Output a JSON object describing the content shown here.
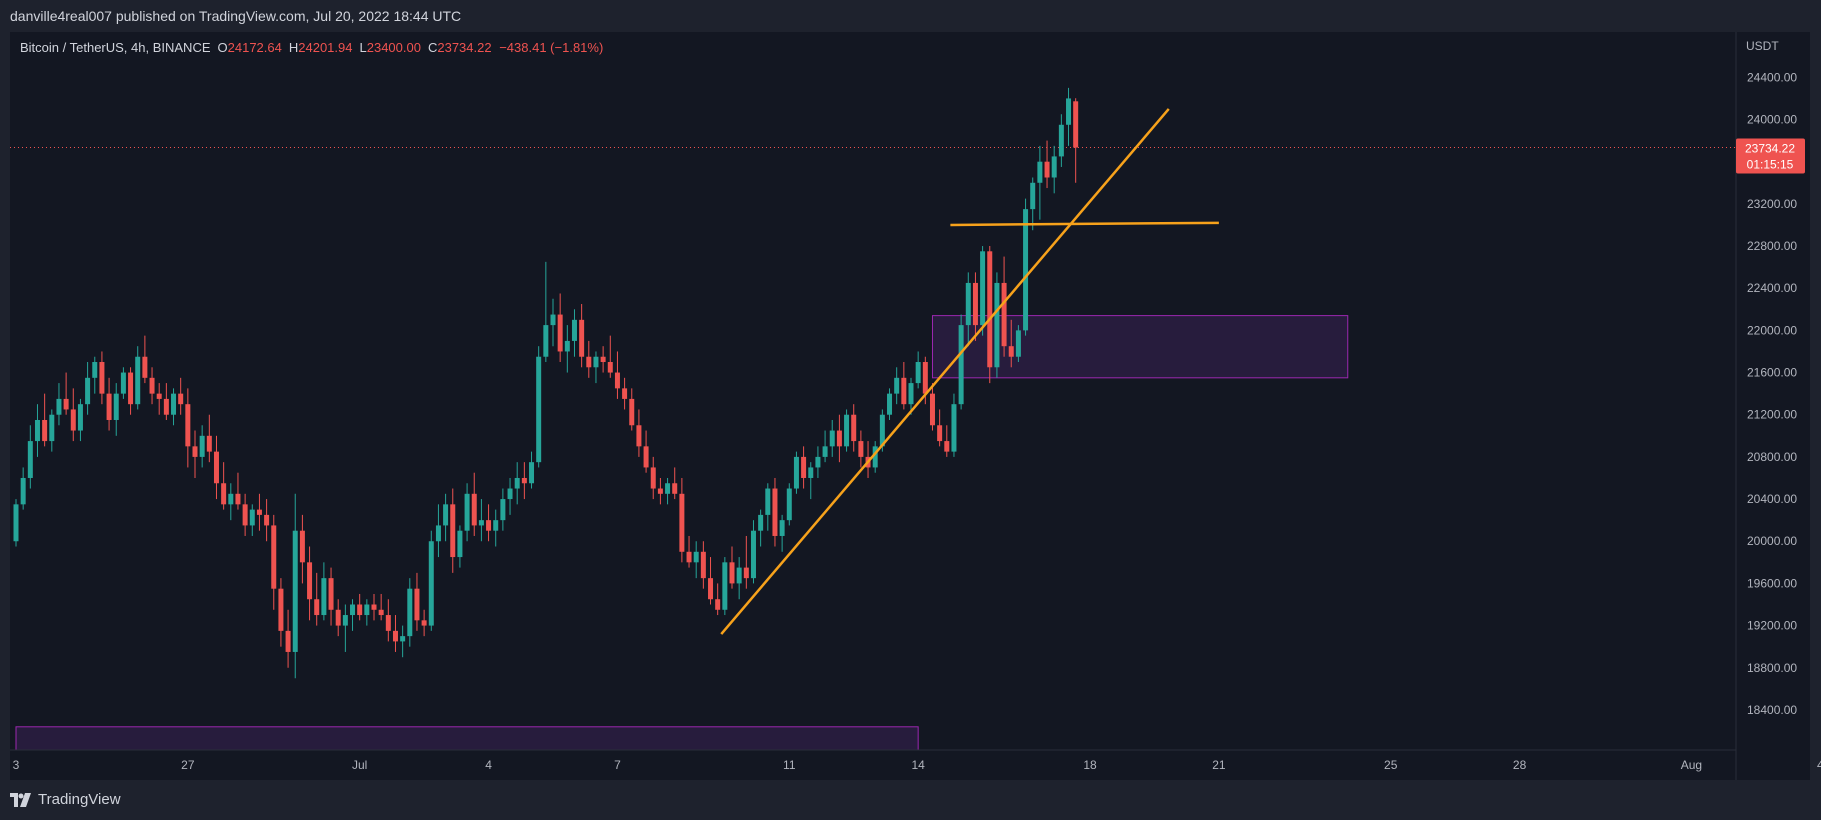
{
  "header": {
    "published_text": "danville4real007 published on TradingView.com, Jul 20, 2022 18:44 UTC"
  },
  "legend": {
    "symbol": "Bitcoin / TetherUS, 4h, BINANCE",
    "o_label": "O",
    "o_value": "24172.64",
    "h_label": "H",
    "h_value": "24201.94",
    "l_label": "L",
    "l_value": "23400.00",
    "c_label": "C",
    "c_value": "23734.22",
    "change": "−438.41 (−1.81%)"
  },
  "footer": {
    "brand": "TradingView"
  },
  "colors": {
    "background": "#131722",
    "grid": "#1e222d",
    "up": "#26a69a",
    "down": "#ef5350",
    "trendline": "#f7a21b",
    "zone_fill": "#2a1d40",
    "zone_border": "#9c27b0",
    "text": "#b2b5be"
  },
  "chart_data": {
    "type": "candlestick",
    "symbol": "Bitcoin / TetherUS",
    "interval": "4h",
    "exchange": "BINANCE",
    "price_axis_label": "USDT",
    "ylim": [
      18020,
      24830
    ],
    "xlim": [
      "Jun 22 18:00",
      "Aug 8 00:00"
    ],
    "y_ticks": [
      "24400.00",
      "24000.00",
      "23200.00",
      "22800.00",
      "22400.00",
      "22000.00",
      "21600.00",
      "21200.00",
      "20800.00",
      "20400.00",
      "20000.00",
      "19600.00",
      "19200.00",
      "18800.00",
      "18400.00"
    ],
    "x_ticks": [
      {
        "label": "3",
        "t": 0
      },
      {
        "label": "27",
        "t": 4
      },
      {
        "label": "Jul",
        "t": 8
      },
      {
        "label": "4",
        "t": 11
      },
      {
        "label": "7",
        "t": 14
      },
      {
        "label": "11",
        "t": 18
      },
      {
        "label": "14",
        "t": 21
      },
      {
        "label": "18",
        "t": 25
      },
      {
        "label": "21",
        "t": 28
      },
      {
        "label": "25",
        "t": 32
      },
      {
        "label": "28",
        "t": 35
      },
      {
        "label": "Aug",
        "t": 39
      },
      {
        "label": "4",
        "t": 42
      }
    ],
    "last_price": {
      "value": "23734.22",
      "countdown": "01:15:15",
      "price": 23734.22
    },
    "candles": [
      [
        20000,
        20400,
        19950,
        20350
      ],
      [
        20350,
        20700,
        20300,
        20600
      ],
      [
        20600,
        21100,
        20500,
        20950
      ],
      [
        20950,
        21300,
        20800,
        21150
      ],
      [
        21150,
        21400,
        20900,
        20950
      ],
      [
        20950,
        21250,
        20850,
        21200
      ],
      [
        21200,
        21500,
        21100,
        21350
      ],
      [
        21350,
        21600,
        21200,
        21250
      ],
      [
        21250,
        21450,
        20950,
        21050
      ],
      [
        21050,
        21350,
        20950,
        21300
      ],
      [
        21300,
        21700,
        21200,
        21550
      ],
      [
        21550,
        21750,
        21400,
        21700
      ],
      [
        21700,
        21800,
        21300,
        21400
      ],
      [
        21400,
        21550,
        21050,
        21150
      ],
      [
        21150,
        21500,
        21000,
        21400
      ],
      [
        21400,
        21650,
        21350,
        21600
      ],
      [
        21600,
        21650,
        21200,
        21300
      ],
      [
        21300,
        21850,
        21250,
        21750
      ],
      [
        21750,
        21950,
        21500,
        21550
      ],
      [
        21550,
        21650,
        21300,
        21400
      ],
      [
        21400,
        21500,
        21200,
        21350
      ],
      [
        21350,
        21500,
        21150,
        21200
      ],
      [
        21200,
        21450,
        21100,
        21400
      ],
      [
        21400,
        21550,
        21200,
        21300
      ],
      [
        21300,
        21450,
        20700,
        20900
      ],
      [
        20900,
        21050,
        20600,
        20800
      ],
      [
        20800,
        21100,
        20700,
        21000
      ],
      [
        21000,
        21200,
        20750,
        20850
      ],
      [
        20850,
        21000,
        20400,
        20550
      ],
      [
        20550,
        20750,
        20300,
        20350
      ],
      [
        20350,
        20550,
        20200,
        20450
      ],
      [
        20450,
        20650,
        20300,
        20350
      ],
      [
        20350,
        20450,
        20050,
        20150
      ],
      [
        20150,
        20350,
        20050,
        20300
      ],
      [
        20300,
        20450,
        20100,
        20250
      ],
      [
        20250,
        20400,
        20000,
        20150
      ],
      [
        20150,
        20250,
        19350,
        19550
      ],
      [
        19550,
        19650,
        19000,
        19150
      ],
      [
        19150,
        19350,
        18800,
        18950
      ],
      [
        18950,
        20450,
        18700,
        20100
      ],
      [
        20100,
        20250,
        19600,
        19800
      ],
      [
        19800,
        19950,
        19250,
        19450
      ],
      [
        19450,
        19700,
        19200,
        19300
      ],
      [
        19300,
        19800,
        19250,
        19650
      ],
      [
        19650,
        19750,
        19200,
        19350
      ],
      [
        19350,
        19450,
        19100,
        19200
      ],
      [
        19200,
        19400,
        18950,
        19300
      ],
      [
        19300,
        19450,
        19150,
        19400
      ],
      [
        19400,
        19500,
        19250,
        19300
      ],
      [
        19300,
        19450,
        19200,
        19400
      ],
      [
        19400,
        19500,
        19250,
        19350
      ],
      [
        19350,
        19500,
        19250,
        19300
      ],
      [
        19300,
        19450,
        19050,
        19150
      ],
      [
        19150,
        19300,
        18950,
        19050
      ],
      [
        19050,
        19200,
        18900,
        19100
      ],
      [
        19100,
        19650,
        19000,
        19550
      ],
      [
        19550,
        19700,
        19150,
        19250
      ],
      [
        19250,
        19350,
        19100,
        19200
      ],
      [
        19200,
        20100,
        19150,
        20000
      ],
      [
        20000,
        20350,
        19850,
        20150
      ],
      [
        20150,
        20450,
        20000,
        20350
      ],
      [
        20350,
        20500,
        19700,
        19850
      ],
      [
        19850,
        20150,
        19750,
        20100
      ],
      [
        20100,
        20550,
        20000,
        20450
      ],
      [
        20450,
        20650,
        20050,
        20150
      ],
      [
        20150,
        20400,
        20000,
        20200
      ],
      [
        20200,
        20350,
        20000,
        20100
      ],
      [
        20100,
        20300,
        19950,
        20200
      ],
      [
        20200,
        20500,
        20100,
        20400
      ],
      [
        20400,
        20600,
        20250,
        20500
      ],
      [
        20500,
        20750,
        20350,
        20600
      ],
      [
        20600,
        20750,
        20400,
        20550
      ],
      [
        20550,
        20850,
        20500,
        20750
      ],
      [
        20750,
        21850,
        20700,
        21750
      ],
      [
        21750,
        22650,
        21700,
        22050
      ],
      [
        22050,
        22300,
        21850,
        22150
      ],
      [
        22150,
        22350,
        21700,
        21800
      ],
      [
        21800,
        22050,
        21600,
        21900
      ],
      [
        21900,
        22200,
        21750,
        22100
      ],
      [
        22100,
        22250,
        21650,
        21750
      ],
      [
        21750,
        21900,
        21550,
        21650
      ],
      [
        21650,
        21800,
        21500,
        21750
      ],
      [
        21750,
        21850,
        21600,
        21700
      ],
      [
        21700,
        21950,
        21550,
        21600
      ],
      [
        21600,
        21800,
        21350,
        21450
      ],
      [
        21450,
        21550,
        21250,
        21350
      ],
      [
        21350,
        21450,
        21050,
        21100
      ],
      [
        21100,
        21250,
        20800,
        20900
      ],
      [
        20900,
        21050,
        20650,
        20700
      ],
      [
        20700,
        20800,
        20400,
        20500
      ],
      [
        20500,
        20600,
        20350,
        20450
      ],
      [
        20450,
        20600,
        20350,
        20550
      ],
      [
        20550,
        20700,
        20400,
        20450
      ],
      [
        20450,
        20600,
        19800,
        19900
      ],
      [
        19900,
        20050,
        19750,
        19800
      ],
      [
        19800,
        20000,
        19650,
        19900
      ],
      [
        19900,
        20000,
        19550,
        19650
      ],
      [
        19650,
        19850,
        19400,
        19450
      ],
      [
        19450,
        19600,
        19300,
        19350
      ],
      [
        19350,
        19850,
        19300,
        19800
      ],
      [
        19800,
        19950,
        19550,
        19600
      ],
      [
        19600,
        19850,
        19450,
        19750
      ],
      [
        19750,
        20050,
        19550,
        19650
      ],
      [
        19650,
        20200,
        19600,
        20100
      ],
      [
        20100,
        20300,
        19950,
        20250
      ],
      [
        20250,
        20550,
        20100,
        20500
      ],
      [
        20500,
        20600,
        19950,
        20050
      ],
      [
        20050,
        20250,
        19900,
        20200
      ],
      [
        20200,
        20550,
        20150,
        20500
      ],
      [
        20500,
        20850,
        20450,
        20800
      ],
      [
        20800,
        20900,
        20500,
        20600
      ],
      [
        20600,
        20750,
        20400,
        20700
      ],
      [
        20700,
        20900,
        20600,
        20800
      ],
      [
        20800,
        21050,
        20750,
        20900
      ],
      [
        20900,
        21150,
        20800,
        21050
      ],
      [
        21050,
        21200,
        20750,
        20900
      ],
      [
        20900,
        21250,
        20850,
        21200
      ],
      [
        21200,
        21300,
        20850,
        20950
      ],
      [
        20950,
        21050,
        20700,
        20800
      ],
      [
        20800,
        20950,
        20600,
        20700
      ],
      [
        20700,
        20950,
        20650,
        20900
      ],
      [
        20900,
        21250,
        20850,
        21200
      ],
      [
        21200,
        21450,
        21150,
        21400
      ],
      [
        21400,
        21650,
        21300,
        21550
      ],
      [
        21550,
        21700,
        21250,
        21300
      ],
      [
        21300,
        21550,
        21200,
        21500
      ],
      [
        21500,
        21800,
        21450,
        21700
      ],
      [
        21700,
        21750,
        21300,
        21400
      ],
      [
        21400,
        21500,
        21050,
        21100
      ],
      [
        21100,
        21250,
        20900,
        20950
      ],
      [
        20950,
        21100,
        20800,
        20850
      ],
      [
        20850,
        21400,
        20800,
        21300
      ],
      [
        21300,
        22150,
        21250,
        22050
      ],
      [
        22050,
        22550,
        21850,
        22450
      ],
      [
        22450,
        22550,
        21900,
        22050
      ],
      [
        22050,
        22800,
        21950,
        22750
      ],
      [
        22750,
        22800,
        21500,
        21650
      ],
      [
        21650,
        22550,
        21550,
        22450
      ],
      [
        22450,
        22700,
        21750,
        21850
      ],
      [
        21850,
        22100,
        21650,
        21750
      ],
      [
        21750,
        22050,
        21700,
        22000
      ],
      [
        22000,
        23250,
        21950,
        23150
      ],
      [
        23150,
        23450,
        22950,
        23400
      ],
      [
        23400,
        23750,
        23050,
        23600
      ],
      [
        23600,
        23800,
        23350,
        23450
      ],
      [
        23450,
        23750,
        23300,
        23650
      ],
      [
        23650,
        24050,
        23550,
        23950
      ],
      [
        23950,
        24300,
        23750,
        24200
      ],
      [
        24172.64,
        24201.94,
        23400.0,
        23734.22
      ]
    ],
    "trendlines": [
      {
        "name": "ascending-trendline",
        "from": [
          98.5,
          19120
        ],
        "to": [
          161,
          24100
        ]
      },
      {
        "name": "horizontal-level",
        "from": [
          130.5,
          23000
        ],
        "to": [
          168,
          23020
        ]
      }
    ],
    "zones": [
      {
        "name": "demand-zone",
        "x0": 128,
        "x1": 186,
        "y_top": 22140,
        "y_bottom": 21550
      },
      {
        "name": "lower-zone",
        "x0": 0,
        "x1": 126,
        "y_top": 18240,
        "y_bottom": 18020
      }
    ]
  }
}
